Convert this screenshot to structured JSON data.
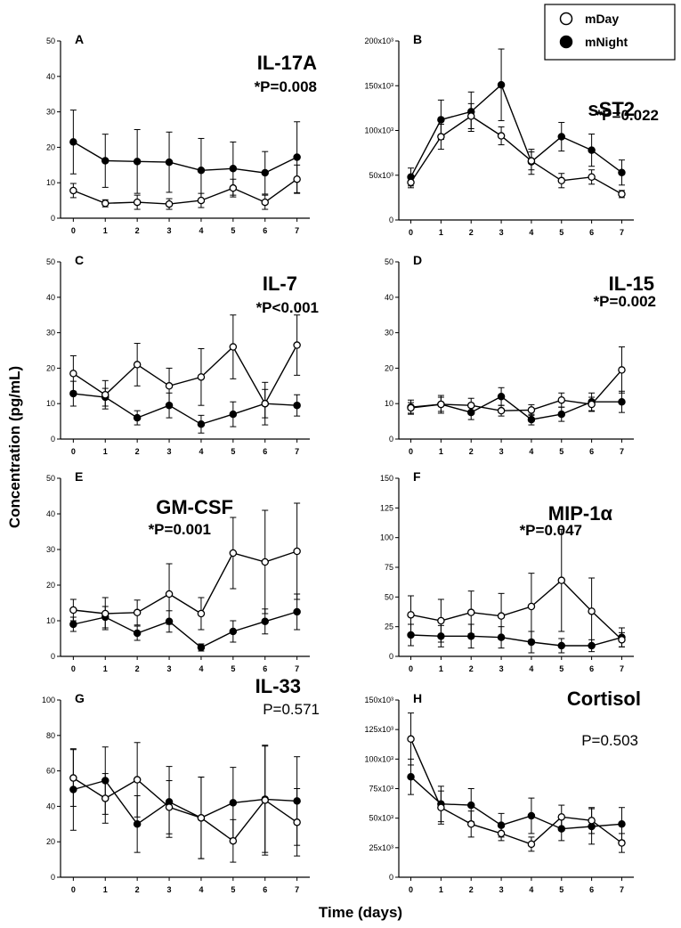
{
  "figure": {
    "y_axis_label": "Concentration (pg/mL)",
    "x_axis_label": "Time (days)",
    "legend": {
      "items": [
        {
          "name": "mDay",
          "marker": "open-circle"
        },
        {
          "name": "mNight",
          "marker": "filled-circle"
        }
      ]
    }
  },
  "chart_data": [
    {
      "panel": "A",
      "title": "IL-17A",
      "p_value": "*P=0.008",
      "type": "line",
      "x": [
        0,
        1,
        2,
        3,
        4,
        5,
        6,
        7
      ],
      "ylim": [
        0,
        50
      ],
      "yticks": [
        0,
        10,
        20,
        30,
        40,
        50
      ],
      "series": [
        {
          "name": "mDay",
          "values": [
            7.8,
            4.2,
            4.5,
            4.0,
            5.0,
            8.5,
            4.5,
            11.0
          ],
          "err": [
            2.0,
            1.0,
            2.0,
            1.5,
            2.0,
            2.5,
            2.0,
            4.0
          ]
        },
        {
          "name": "mNight",
          "values": [
            21.5,
            16.2,
            16.0,
            15.8,
            13.5,
            14.0,
            12.8,
            17.2
          ],
          "err": [
            9.0,
            7.5,
            9.0,
            8.5,
            9.0,
            7.5,
            6.0,
            10.0
          ]
        }
      ]
    },
    {
      "panel": "B",
      "title": "sST2",
      "p_value": "*P=0.022",
      "type": "line",
      "x": [
        0,
        1,
        2,
        3,
        4,
        5,
        6,
        7
      ],
      "ylim": [
        0,
        200000
      ],
      "yticks": [
        0,
        50000,
        100000,
        150000,
        200000
      ],
      "ytick_labels": [
        "0",
        "50x10³",
        "100x10³",
        "150x10³",
        "200x10³"
      ],
      "series": [
        {
          "name": "mDay",
          "values": [
            42000,
            93000,
            116000,
            94000,
            66000,
            44000,
            48000,
            29000
          ],
          "err": [
            6000,
            14000,
            14000,
            10000,
            10000,
            8000,
            8000,
            4000
          ]
        },
        {
          "name": "mNight",
          "values": [
            48000,
            112000,
            121000,
            151000,
            65000,
            93000,
            78000,
            53000
          ],
          "err": [
            10000,
            22000,
            22000,
            40000,
            14000,
            16000,
            18000,
            14000
          ]
        }
      ]
    },
    {
      "panel": "C",
      "title": "IL-7",
      "p_value": "*P<0.001",
      "type": "line",
      "x": [
        0,
        1,
        2,
        3,
        4,
        5,
        6,
        7
      ],
      "ylim": [
        0,
        50
      ],
      "yticks": [
        0,
        10,
        20,
        30,
        40,
        50
      ],
      "series": [
        {
          "name": "mDay",
          "values": [
            18.5,
            12.5,
            21.0,
            15.0,
            17.5,
            26.0,
            10.0,
            26.5
          ],
          "err": [
            5.0,
            4.0,
            6.0,
            5.0,
            8.0,
            9.0,
            6.0,
            8.5
          ]
        },
        {
          "name": "mNight",
          "values": [
            12.8,
            11.8,
            6.0,
            9.5,
            4.2,
            7.0,
            10.0,
            9.5
          ],
          "err": [
            3.5,
            2.5,
            2.0,
            3.5,
            2.5,
            3.5,
            4.0,
            3.0
          ]
        }
      ]
    },
    {
      "panel": "D",
      "title": "IL-15",
      "p_value": "*P=0.002",
      "type": "line",
      "x": [
        0,
        1,
        2,
        3,
        4,
        5,
        6,
        7
      ],
      "ylim": [
        0,
        50
      ],
      "yticks": [
        0,
        10,
        20,
        30,
        40,
        50
      ],
      "series": [
        {
          "name": "mDay",
          "values": [
            8.8,
            9.8,
            9.5,
            8.0,
            8.2,
            11.0,
            9.8,
            19.5
          ],
          "err": [
            1.5,
            2.0,
            2.0,
            1.5,
            1.5,
            2.0,
            2.0,
            6.5
          ]
        },
        {
          "name": "mNight",
          "values": [
            9.0,
            9.8,
            7.5,
            12.0,
            5.5,
            7.0,
            10.5,
            10.5
          ],
          "err": [
            2.0,
            2.5,
            2.0,
            2.5,
            1.5,
            2.0,
            2.5,
            3.0
          ]
        }
      ]
    },
    {
      "panel": "E",
      "title": "GM-CSF",
      "p_value": "*P=0.001",
      "type": "line",
      "x": [
        0,
        1,
        2,
        3,
        4,
        5,
        6,
        7
      ],
      "ylim": [
        0,
        50
      ],
      "yticks": [
        0,
        10,
        20,
        30,
        40,
        50
      ],
      "series": [
        {
          "name": "mDay",
          "values": [
            13.0,
            12.0,
            12.3,
            17.5,
            12.0,
            29.0,
            26.5,
            29.5
          ],
          "err": [
            3.0,
            4.5,
            3.5,
            8.5,
            4.5,
            10.0,
            14.5,
            13.5
          ]
        },
        {
          "name": "mNight",
          "values": [
            9.0,
            11.0,
            6.5,
            9.8,
            2.5,
            7.0,
            9.8,
            12.5
          ],
          "err": [
            2.0,
            3.0,
            2.0,
            3.0,
            1.0,
            3.0,
            3.5,
            5.0
          ]
        }
      ]
    },
    {
      "panel": "F",
      "title": "MIP-1α",
      "p_value": "*P=0.047",
      "type": "line",
      "x": [
        0,
        1,
        2,
        3,
        4,
        5,
        6,
        7
      ],
      "ylim": [
        0,
        150
      ],
      "yticks": [
        0,
        25,
        50,
        75,
        100,
        125,
        150
      ],
      "series": [
        {
          "name": "mDay",
          "values": [
            35.0,
            30.0,
            37.0,
            34.0,
            42.0,
            64.0,
            38.0,
            14.0
          ],
          "err": [
            16.0,
            18.0,
            18.0,
            19.0,
            28.0,
            43.0,
            28.0,
            6.0
          ]
        },
        {
          "name": "mNight",
          "values": [
            18.0,
            17.0,
            17.0,
            16.0,
            12.0,
            9.0,
            9.0,
            16.0
          ],
          "err": [
            9.0,
            9.0,
            10.0,
            9.0,
            9.0,
            6.0,
            5.0,
            8.0
          ]
        }
      ]
    },
    {
      "panel": "G",
      "title": "IL-33",
      "p_value": "P=0.571",
      "type": "line",
      "x": [
        0,
        1,
        2,
        3,
        4,
        5,
        6,
        7
      ],
      "ylim": [
        0,
        100
      ],
      "yticks": [
        0,
        20,
        40,
        60,
        80,
        100
      ],
      "series": [
        {
          "name": "mDay",
          "values": [
            56.0,
            44.5,
            55.0,
            39.5,
            33.5,
            20.5,
            43.5,
            31.0
          ],
          "err": [
            16.0,
            14.0,
            21.0,
            15.0,
            23.0,
            12.0,
            31.0,
            19.0
          ]
        },
        {
          "name": "mNight",
          "values": [
            49.5,
            54.5,
            30.0,
            42.5,
            33.5,
            42.0,
            44.0,
            43.0
          ],
          "err": [
            23.0,
            19.0,
            16.0,
            20.0,
            23.0,
            20.0,
            30.0,
            25.0
          ]
        }
      ]
    },
    {
      "panel": "H",
      "title": "Cortisol",
      "p_value": "P=0.503",
      "type": "line",
      "x": [
        0,
        1,
        2,
        3,
        4,
        5,
        6,
        7
      ],
      "ylim": [
        0,
        150000
      ],
      "yticks": [
        0,
        25000,
        50000,
        75000,
        100000,
        125000,
        150000
      ],
      "ytick_labels": [
        "0",
        "25x10³",
        "50x10³",
        "75x10³",
        "100x10³",
        "125x10³",
        "150x10³"
      ],
      "series": [
        {
          "name": "mDay",
          "values": [
            117000,
            59000,
            45000,
            37000,
            28000,
            51000,
            48000,
            29000
          ],
          "err": [
            22000,
            14000,
            11000,
            6000,
            6000,
            10000,
            11000,
            8000
          ]
        },
        {
          "name": "mNight",
          "values": [
            85000,
            62000,
            61000,
            44000,
            52000,
            41000,
            43000,
            45000
          ],
          "err": [
            15000,
            15000,
            14000,
            10000,
            15000,
            10000,
            15000,
            14000
          ]
        }
      ]
    }
  ]
}
